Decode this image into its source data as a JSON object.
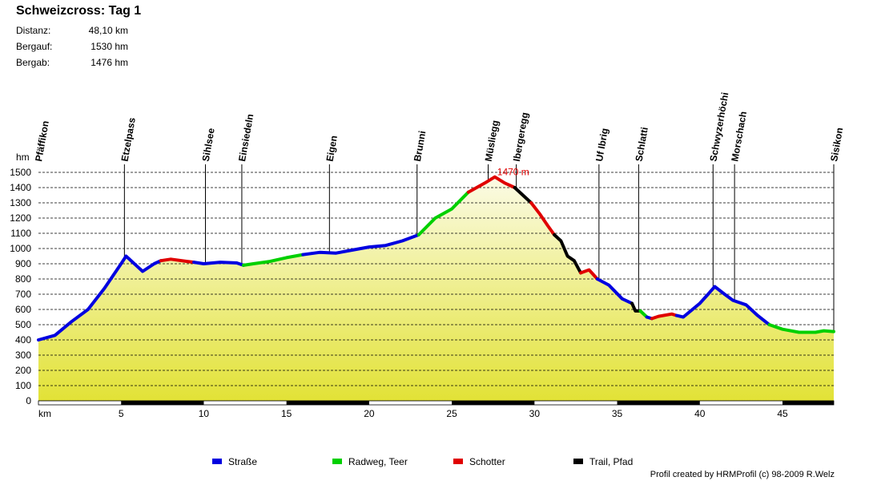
{
  "header": {
    "title": "Schweizcross: Tag 1",
    "stats": [
      {
        "label": "Distanz:",
        "value": "48,10 km"
      },
      {
        "label": "Bergauf:",
        "value": "1530 hm"
      },
      {
        "label": "Bergab:",
        "value": "1476 hm"
      }
    ]
  },
  "chart_data": {
    "type": "area",
    "ylabel": "hm",
    "xlabel": "km",
    "xlim": [
      0,
      48.1
    ],
    "ylim": [
      0,
      1500
    ],
    "y_ticks": [
      "0",
      "100",
      "200",
      "300",
      "400",
      "500",
      "600",
      "700",
      "800",
      "900",
      "1000",
      "1100",
      "1200",
      "1300",
      "1400",
      "1500"
    ],
    "x_ticks": [
      "5",
      "10",
      "15",
      "20",
      "25",
      "30",
      "35",
      "40",
      "45"
    ],
    "grid": true,
    "max_annotation": {
      "x": 27.6,
      "y": 1470,
      "text": "1470 m",
      "color": "#e00000"
    },
    "waypoints": [
      {
        "name": "Pfäffikon",
        "km": 0
      },
      {
        "name": "Etzelpass",
        "km": 5.2
      },
      {
        "name": "Sihlsee",
        "km": 10.1
      },
      {
        "name": "Einsiedeln",
        "km": 12.3
      },
      {
        "name": "Eigen",
        "km": 17.6
      },
      {
        "name": "Brunni",
        "km": 22.9
      },
      {
        "name": "Müsliegg",
        "km": 27.2
      },
      {
        "name": "Ibergeregg",
        "km": 28.9
      },
      {
        "name": "Uf Ibrig",
        "km": 33.9
      },
      {
        "name": "Schlatti",
        "km": 36.3
      },
      {
        "name": "Schwyzerhöchi",
        "km": 40.8
      },
      {
        "name": "Morschach",
        "km": 42.1
      },
      {
        "name": "Sisikon",
        "km": 48.1
      }
    ],
    "series": [
      {
        "name": "Straße",
        "color": "#0000e0",
        "points": [
          [
            0,
            400
          ],
          [
            1,
            430
          ],
          [
            2,
            520
          ],
          [
            3,
            600
          ],
          [
            4,
            740
          ],
          [
            5,
            900
          ],
          [
            5.3,
            950
          ],
          [
            6,
            880
          ],
          [
            6.3,
            850
          ],
          [
            7,
            900
          ],
          [
            7.4,
            920
          ]
        ]
      },
      {
        "name": "Schotter",
        "color": "#e00000",
        "points": [
          [
            7.4,
            920
          ],
          [
            8,
            930
          ],
          [
            9,
            915
          ],
          [
            9.4,
            910
          ]
        ]
      },
      {
        "name": "Straße",
        "color": "#0000e0",
        "points": [
          [
            9.4,
            910
          ],
          [
            10,
            900
          ],
          [
            11,
            910
          ],
          [
            12,
            905
          ],
          [
            12.4,
            890
          ]
        ]
      },
      {
        "name": "Radweg, Teer",
        "color": "#00d000",
        "points": [
          [
            12.4,
            890
          ],
          [
            13,
            900
          ],
          [
            14,
            915
          ],
          [
            15,
            940
          ],
          [
            16,
            960
          ]
        ]
      },
      {
        "name": "Straße",
        "color": "#0000e0",
        "points": [
          [
            16,
            960
          ],
          [
            17,
            975
          ],
          [
            18,
            970
          ],
          [
            19,
            990
          ],
          [
            20,
            1010
          ],
          [
            21,
            1020
          ],
          [
            22,
            1050
          ],
          [
            23,
            1090
          ]
        ]
      },
      {
        "name": "Radweg, Teer",
        "color": "#00d000",
        "points": [
          [
            23,
            1090
          ],
          [
            24,
            1200
          ],
          [
            25,
            1260
          ],
          [
            26,
            1370
          ]
        ]
      },
      {
        "name": "Schotter",
        "color": "#e00000",
        "points": [
          [
            26,
            1370
          ],
          [
            27,
            1430
          ],
          [
            27.6,
            1470
          ],
          [
            28.2,
            1430
          ],
          [
            28.8,
            1400
          ]
        ]
      },
      {
        "name": "Trail, Pfad",
        "color": "#000000",
        "points": [
          [
            28.8,
            1400
          ],
          [
            29.3,
            1350
          ],
          [
            29.8,
            1300
          ]
        ]
      },
      {
        "name": "Schotter",
        "color": "#e00000",
        "points": [
          [
            29.8,
            1300
          ],
          [
            30.3,
            1230
          ],
          [
            30.8,
            1150
          ],
          [
            31.2,
            1090
          ]
        ]
      },
      {
        "name": "Trail, Pfad",
        "color": "#000000",
        "points": [
          [
            31.2,
            1090
          ],
          [
            31.6,
            1050
          ],
          [
            32,
            950
          ],
          [
            32.4,
            920
          ],
          [
            32.8,
            840
          ]
        ]
      },
      {
        "name": "Schotter",
        "color": "#e00000",
        "points": [
          [
            32.8,
            840
          ],
          [
            33.3,
            860
          ],
          [
            33.8,
            800
          ]
        ]
      },
      {
        "name": "Straße",
        "color": "#0000e0",
        "points": [
          [
            33.8,
            800
          ],
          [
            34.5,
            760
          ],
          [
            35.3,
            670
          ],
          [
            35.9,
            640
          ]
        ]
      },
      {
        "name": "Trail, Pfad",
        "color": "#000000",
        "points": [
          [
            35.9,
            640
          ],
          [
            36.1,
            590
          ],
          [
            36.4,
            590
          ]
        ]
      },
      {
        "name": "Radweg, Teer",
        "color": "#00d000",
        "points": [
          [
            36.4,
            590
          ],
          [
            36.8,
            550
          ]
        ]
      },
      {
        "name": "Straße",
        "color": "#0000e0",
        "points": [
          [
            36.8,
            550
          ],
          [
            37.1,
            540
          ]
        ]
      },
      {
        "name": "Schotter",
        "color": "#e00000",
        "points": [
          [
            37.1,
            540
          ],
          [
            37.5,
            555
          ],
          [
            38.3,
            570
          ],
          [
            38.6,
            560
          ]
        ]
      },
      {
        "name": "Straße",
        "color": "#0000e0",
        "points": [
          [
            38.6,
            560
          ],
          [
            39,
            550
          ],
          [
            40,
            640
          ],
          [
            40.5,
            700
          ],
          [
            40.9,
            750
          ],
          [
            41.5,
            700
          ],
          [
            42,
            660
          ],
          [
            42.8,
            630
          ],
          [
            43.5,
            560
          ],
          [
            44.2,
            500
          ]
        ]
      },
      {
        "name": "Radweg, Teer",
        "color": "#00d000",
        "points": [
          [
            44.2,
            500
          ],
          [
            45,
            470
          ],
          [
            46,
            450
          ],
          [
            47,
            450
          ],
          [
            47.5,
            460
          ],
          [
            48.1,
            455
          ]
        ]
      }
    ],
    "legend": [
      {
        "name": "Straße",
        "color": "#0000e0"
      },
      {
        "name": "Radweg, Teer",
        "color": "#00d000"
      },
      {
        "name": "Schotter",
        "color": "#e00000"
      },
      {
        "name": "Trail, Pfad",
        "color": "#000000"
      }
    ]
  },
  "footer": {
    "credit": "Profil created by HRMProfil (c) 98-2009 R.Welz"
  }
}
